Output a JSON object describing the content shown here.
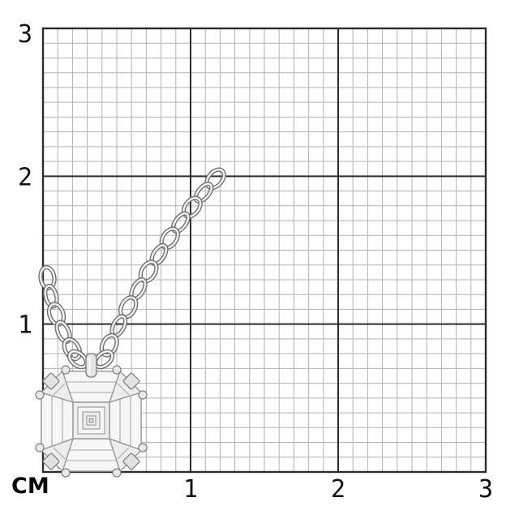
{
  "scene": {
    "background": "#ffffff",
    "description": "Jewellery product photo on centimetre graph paper: white-gold necklace with a composite Asscher-cut diamond cluster pendant on a cable chain"
  },
  "ruler": {
    "unit_label": "СМ",
    "x_axis_labels": [
      "1",
      "2",
      "3"
    ],
    "y_axis_labels": [
      "3",
      "2",
      "1"
    ],
    "centimetres": 3,
    "minor_divisions_per_cm": 10,
    "colors": {
      "minor_line": "#b3b3b3",
      "major_line": "#2d2d2d",
      "border": "#2d2d2d",
      "label": "#111111"
    }
  },
  "product": {
    "item": "diamond-cluster-pendant-necklace",
    "pendant_shape": "octagonal cut-corner cluster with central Asscher-cut stone",
    "chain_type": "cable chain, two strands cropped at photo edge",
    "metal_color": "#e8e8e8",
    "metal_outline_color": "#6b6b6b"
  }
}
